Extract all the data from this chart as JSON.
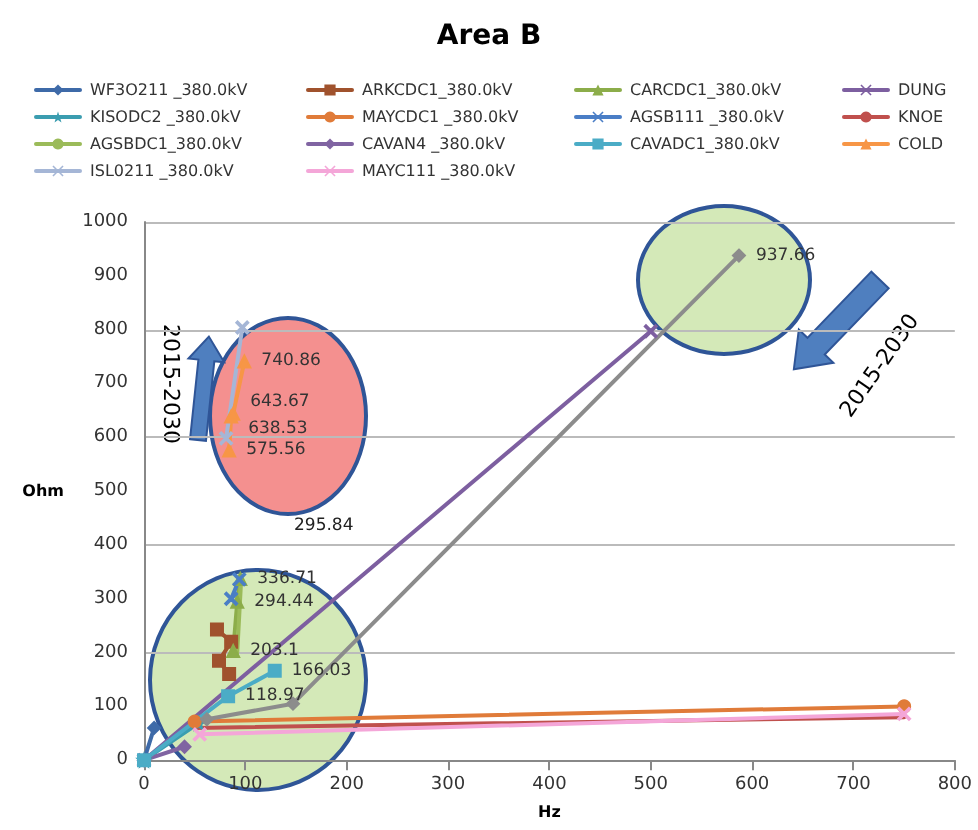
{
  "chart_data": {
    "type": "line",
    "title": "Area B",
    "xlabel": "Hz",
    "ylabel": "Ohm",
    "xlim": [
      0,
      800
    ],
    "ylim": [
      0,
      1000
    ],
    "xticks": [
      0,
      100,
      200,
      300,
      400,
      500,
      600,
      700,
      800
    ],
    "yticks": [
      0,
      100,
      200,
      300,
      400,
      500,
      600,
      700,
      800,
      900,
      1000
    ],
    "grid": "y",
    "legend": "top",
    "line_style": "solid",
    "annotations": [
      "295.84",
      "2015-2030",
      "2015-2030"
    ],
    "series": [
      {
        "name": "WF3O211 _380.0kV",
        "color": "#3e6aa8",
        "marker": "diamond",
        "x": [
          0,
          10
        ],
        "values": [
          0,
          60
        ]
      },
      {
        "name": "ARKCDC1_380.0kV",
        "color": "#a0522d",
        "marker": "square",
        "x": [
          72,
          86,
          74,
          84
        ],
        "values": [
          243,
          220,
          185,
          160
        ]
      },
      {
        "name": "CARCDC1_380.0kV",
        "color": "#8cad4a",
        "marker": "triangle",
        "x": [
          88,
          92,
          95
        ],
        "values": [
          203.1,
          294.44,
          336.71
        ],
        "value_labels": [
          "203.1",
          "294.44",
          "336.71"
        ]
      },
      {
        "name": "DUNG",
        "color": "#7d5fa0",
        "marker": "cross",
        "x": [
          0,
          500
        ],
        "values": [
          0,
          797
        ]
      },
      {
        "name": "KISODC2 _380.0kV",
        "color": "#3b9db0",
        "marker": "star",
        "x": [
          0,
          54
        ],
        "values": [
          0,
          69
        ]
      },
      {
        "name": "MAYCDC1 _380.0kV",
        "color": "#e07b39",
        "marker": "circle",
        "x": [
          50,
          750
        ],
        "values": [
          72,
          100
        ]
      },
      {
        "name": "AGSB111 _380.0kV",
        "color": "#4a7ec6",
        "marker": "cross",
        "x": [
          86,
          94
        ],
        "values": [
          300,
          336
        ]
      },
      {
        "name": "KNOE",
        "color": "#c0504d",
        "marker": "none",
        "x": [
          50,
          750
        ],
        "values": [
          60,
          80
        ]
      },
      {
        "name": "AGSBDC1_380.0kV",
        "color": "#9bbb59",
        "marker": "none",
        "x": [
          92,
          96,
          94
        ],
        "values": [
          200,
          340,
          290
        ]
      },
      {
        "name": "CAVAN4 _380.0kV",
        "color": "#8064a2",
        "marker": "diamond",
        "x": [
          0,
          40
        ],
        "values": [
          0,
          25
        ]
      },
      {
        "name": "CAVADC1_380.0kV",
        "color": "#4bacc6",
        "marker": "square",
        "x": [
          0,
          83,
          129
        ],
        "values": [
          0,
          118.97,
          166.03
        ],
        "value_labels": [
          null,
          "118.97",
          "166.03"
        ]
      },
      {
        "name": "COLD",
        "color": "#f79646",
        "marker": "triangle",
        "x": [
          84,
          86,
          88,
          99
        ],
        "values": [
          575.56,
          638.53,
          643.67,
          740.86
        ],
        "value_labels": [
          "575.56",
          "638.53",
          "643.67",
          "740.86"
        ]
      },
      {
        "name": "ISL0211 _380.0kV",
        "color": "#a5b6d6",
        "marker": "cross",
        "x": [
          81,
          97
        ],
        "values": [
          598,
          804
        ]
      },
      {
        "name": "MAYC111 _380.0kV",
        "color": "#f4a6d8",
        "marker": "cross",
        "x": [
          55,
          750
        ],
        "values": [
          48,
          86
        ]
      },
      {
        "color": "#8c8c8c",
        "marker": "diamond",
        "x": [
          62,
          147,
          587
        ],
        "values": [
          76,
          105,
          937.66
        ],
        "value_labels": [
          null,
          null,
          "937.66"
        ]
      }
    ]
  }
}
